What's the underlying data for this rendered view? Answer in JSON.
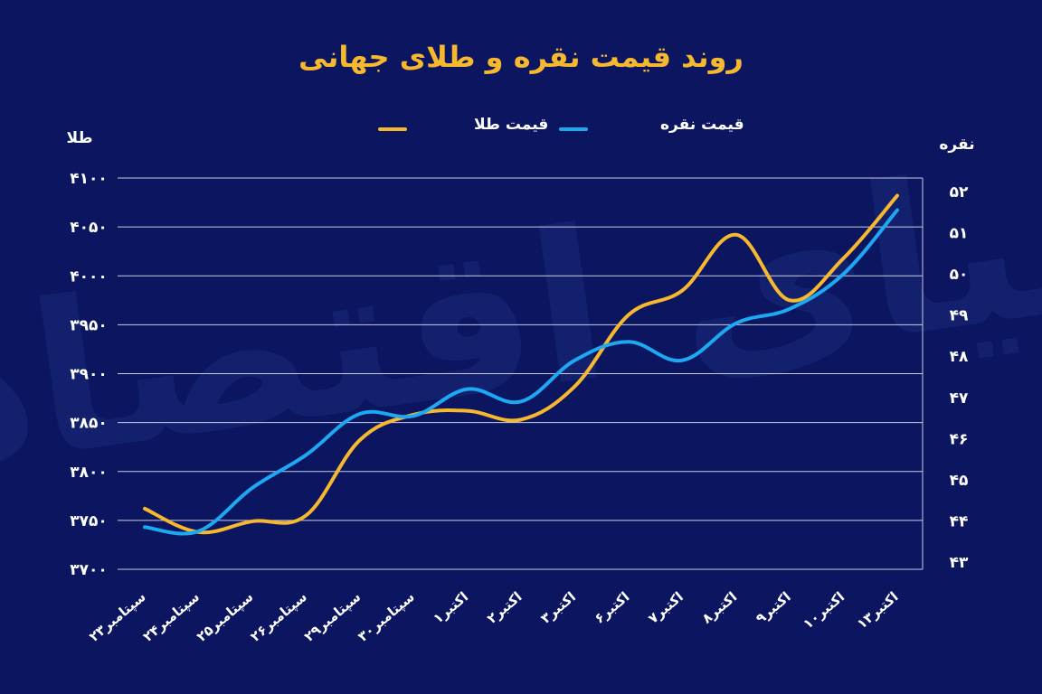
{
  "colors": {
    "background": "#0b1560",
    "gold": "#f5b82e",
    "silver": "#1ea8f2",
    "grid": "#c9cde3",
    "text": "#ffffff",
    "title": "#f5b82e",
    "watermark": "#1b2a7a"
  },
  "watermark_text": "دنیای اقتصاد",
  "chart_data": {
    "type": "line",
    "title": "روند قیمت نقره و طلای جهانی",
    "y_left_label": "طلا",
    "y_right_label": "نقره",
    "y_left_ticks": [
      "۴۱۰۰",
      "۴۰۵۰",
      "۴۰۰۰",
      "۳۹۵۰",
      "۳۹۰۰",
      "۳۸۵۰",
      "۳۸۰۰",
      "۳۷۵۰",
      "۳۷۰۰"
    ],
    "y_right_ticks": [
      "۵۲",
      "۵۱",
      "۵۰",
      "۴۹",
      "۴۸",
      "۴۷",
      "۴۶",
      "۴۵",
      "۴۴",
      "۴۳"
    ],
    "y_left_range": [
      3700,
      4100
    ],
    "y_right_range": [
      43,
      52.3
    ],
    "categories": [
      "۲۳سپتامبر",
      "۲۴سپتامبر",
      "۲۵سپتامبر",
      "۲۶سپتامبر",
      "۲۹سپتامبر",
      "۳۰سپتامبر",
      "۱اکتبر",
      "۲اکتبر",
      "۳اکتبر",
      "۶اکتبر",
      "۷اکتبر",
      "۸اکتبر",
      "۹اکتبر",
      "۱۰اکتبر",
      "۱۳اکتبر"
    ],
    "legend_position": "top-center",
    "grid": true,
    "series": [
      {
        "name": "قیمت طلا",
        "axis": "left",
        "color": "#f5b82e",
        "values": [
          3762,
          3738,
          3749,
          3755,
          3832,
          3858,
          3862,
          3853,
          3887,
          3960,
          3985,
          4042,
          3975,
          4018,
          4082
        ]
      },
      {
        "name": "قیمت نقره",
        "axis": "right",
        "color": "#1ea8f2",
        "values": [
          43.85,
          43.75,
          44.8,
          45.6,
          46.6,
          46.55,
          47.2,
          46.9,
          47.9,
          48.35,
          47.9,
          48.8,
          49.15,
          50.0,
          51.55
        ]
      }
    ]
  }
}
